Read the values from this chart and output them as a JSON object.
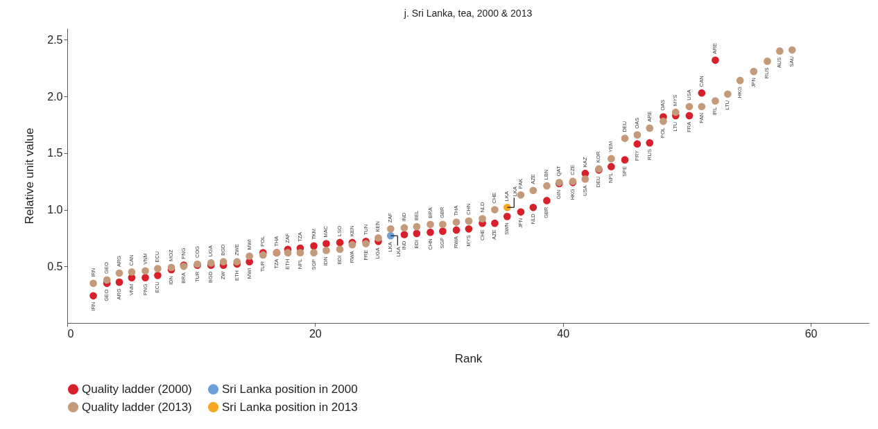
{
  "chart_data": {
    "type": "scatter",
    "title": "j. Sri Lanka, tea, 2000 & 2013",
    "xlabel": "Rank",
    "ylabel": "Relative unit value",
    "xlim": [
      0,
      64.7
    ],
    "xticks": [
      0,
      20,
      40,
      60
    ],
    "ylim": [
      0,
      2.6
    ],
    "yticks": [
      0.5,
      {
        "value": 1,
        "label": "1.0"
      },
      1.5,
      {
        "value": 2,
        "label": "2.0"
      },
      2.5
    ],
    "marker": "circle",
    "legend": "bottom",
    "series": [
      {
        "name": "Quality ladder (2000)",
        "color": "#d7202a",
        "x": [
          2.1,
          3.2,
          4.2,
          5.2,
          6.3,
          7.3,
          8.4,
          9.4,
          10.5,
          11.6,
          12.6,
          13.7,
          14.7,
          15.8,
          16.9,
          17.8,
          18.8,
          19.9,
          20.9,
          22.0,
          23.0,
          24.1,
          25.1,
          27.2,
          28.2,
          29.3,
          30.3,
          31.4,
          32.4,
          33.5,
          34.5,
          35.5,
          36.6,
          37.6,
          38.7,
          39.7,
          40.8,
          41.8,
          42.9,
          43.9,
          45.0,
          46.0,
          47.0,
          48.1,
          49.1,
          50.2,
          51.2,
          52.3
        ],
        "values": [
          0.24,
          0.35,
          0.36,
          0.4,
          0.4,
          0.42,
          0.47,
          0.51,
          0.51,
          0.51,
          0.51,
          0.52,
          0.54,
          0.62,
          0.62,
          0.65,
          0.66,
          0.68,
          0.7,
          0.71,
          0.71,
          0.72,
          0.72,
          0.78,
          0.79,
          0.8,
          0.81,
          0.82,
          0.83,
          0.88,
          0.88,
          0.94,
          0.98,
          1.02,
          1.08,
          1.23,
          1.24,
          1.32,
          1.35,
          1.38,
          1.44,
          1.58,
          1.59,
          1.82,
          1.83,
          1.83,
          2.03,
          2.32
        ],
        "value_labels": [
          "IRN",
          "GEO",
          "ARG",
          "VNM",
          "PNG",
          "ECU",
          "IDN",
          "PNG",
          "TUR",
          "BGD",
          "ZW",
          "ETH",
          "MWI",
          "POL",
          "THA",
          "ZAF",
          "TZA",
          "TKM",
          "MAC",
          "LSO",
          "KEN",
          "TUN",
          "UGA",
          "IND",
          "BDI",
          "CHN",
          "SGP",
          "RWA",
          "MYS",
          "CHE",
          "AZE",
          "SWN",
          "JPN",
          "NLD",
          "GBR",
          "GIN",
          "HKG",
          "KAZ",
          "DEU",
          "NPL",
          "SPE",
          "PRY",
          "RUS",
          "OAS",
          "LTU",
          "FRA",
          "CAN",
          "ARE"
        ]
      },
      {
        "name": "Sri Lanka position in 2000",
        "color": "#6f9fd8",
        "x": [
          26.1
        ],
        "values": [
          0.77
        ],
        "value_labels": [
          "LKA"
        ]
      },
      {
        "name": "Quality ladder (2013)",
        "color": "#c49a7a",
        "x": [
          2.1,
          3.2,
          4.2,
          5.2,
          6.3,
          7.3,
          8.4,
          9.4,
          10.5,
          11.6,
          12.6,
          13.7,
          14.7,
          15.8,
          16.9,
          17.8,
          18.8,
          19.9,
          20.9,
          22.0,
          23.0,
          24.1,
          25.1,
          26.1,
          27.2,
          28.2,
          29.3,
          30.3,
          31.4,
          32.4,
          33.5,
          34.5,
          36.6,
          37.6,
          38.7,
          39.7,
          40.8,
          41.8,
          42.9,
          43.9,
          45.0,
          46.0,
          47.0,
          48.1,
          49.1,
          50.2,
          51.2,
          52.3,
          53.3,
          54.3,
          55.4,
          56.5,
          57.5,
          58.5
        ],
        "values": [
          0.35,
          0.38,
          0.44,
          0.45,
          0.46,
          0.48,
          0.49,
          0.5,
          0.52,
          0.53,
          0.54,
          0.54,
          0.59,
          0.6,
          0.62,
          0.62,
          0.62,
          0.62,
          0.64,
          0.65,
          0.69,
          0.7,
          0.75,
          0.83,
          0.84,
          0.85,
          0.87,
          0.87,
          0.89,
          0.9,
          0.92,
          1.0,
          1.13,
          1.17,
          1.21,
          1.24,
          1.25,
          1.27,
          1.36,
          1.45,
          1.63,
          1.66,
          1.72,
          1.78,
          1.86,
          1.91,
          1.91,
          1.96,
          2.02,
          2.14,
          2.22,
          2.31,
          2.4,
          2.41
        ],
        "value_labels": [
          "IRN",
          "GEO",
          "ARG",
          "CAN",
          "VNM",
          "ECU",
          "MOZ",
          "BRA",
          "COG",
          "UGA",
          "BGD",
          "ZWE",
          "MWI",
          "TUR",
          "TZA",
          "ETH",
          "NPL",
          "SGP",
          "IDN",
          "BDI",
          "RWA",
          "FRE",
          "KEN",
          "ZAF",
          "IND",
          "BEL",
          "BRA",
          "GBR",
          "THA",
          "CHN",
          "NLD",
          "CHE",
          "PAK",
          "AZE",
          "LBN",
          "QAT",
          "CZE",
          "USA",
          "KOR",
          "YEM",
          "DEU",
          "OAS",
          "ARE",
          "POL",
          "MYS",
          "USA",
          "PAN",
          "IRL",
          "LTU",
          "HKG",
          "JPN",
          "RUS",
          "AUS",
          "SAU"
        ]
      },
      {
        "name": "Sri Lanka position in 2013",
        "color": "#f5a623",
        "x": [
          35.5
        ],
        "values": [
          1.02
        ],
        "value_labels": [
          "LKA"
        ]
      }
    ],
    "annotations": [
      {
        "text": "LKA",
        "x": 26.1,
        "y": 0.77
      },
      {
        "text": "LKA",
        "x": 35.5,
        "y": 1.02
      }
    ]
  }
}
